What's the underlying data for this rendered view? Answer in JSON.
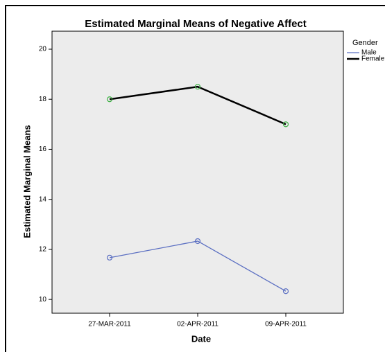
{
  "chart_data": {
    "type": "line",
    "title": "Estimated Marginal Means of Negative Affect",
    "x_label": "Date",
    "y_label": "Estimated Marginal Means",
    "categories": [
      "27-MAR-2011",
      "02-APR-2011",
      "09-APR-2011"
    ],
    "legend_title": "Gender",
    "legend_position": "right",
    "series": [
      {
        "name": "Male",
        "color": "#5b6fc2",
        "marker_color": "#5b6fc2",
        "values": [
          11.67,
          12.33,
          10.33
        ]
      },
      {
        "name": "Female",
        "color": "#000000",
        "marker_color": "#3cb043",
        "values": [
          18,
          18.5,
          17
        ]
      }
    ],
    "ylim": [
      9.45,
      20.72
    ],
    "yticks": [
      10,
      12,
      14,
      16,
      18,
      20
    ],
    "grid": false
  }
}
